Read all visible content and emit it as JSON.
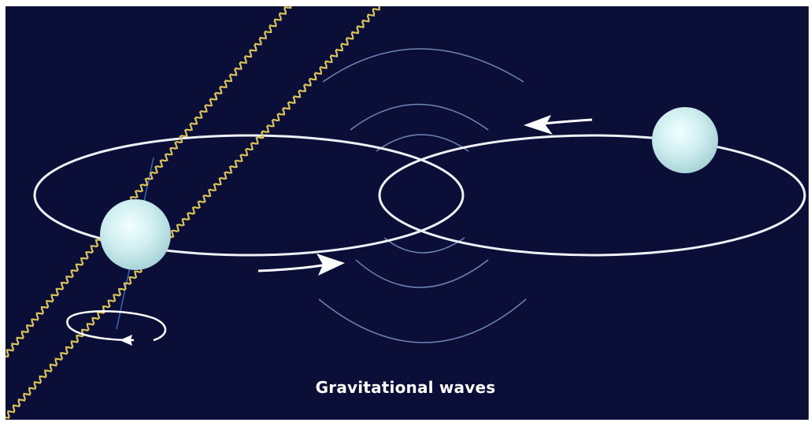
{
  "caption": "Gravitational waves",
  "colors": {
    "background": "#0b0f37",
    "orbit": "#eef1f5",
    "wave_ring": "#6f86b4",
    "wavy_line": "#d9c35a",
    "star_core": "#f2ffff",
    "star_edge": "#a9d4d8",
    "spin_axis": "#3a66b8"
  },
  "icons": {
    "left_star": "sphere",
    "right_star": "sphere",
    "orbit_arrow_bottom": "arrow-right",
    "orbit_arrow_top": "arrow-left",
    "spin_arrow": "arrow-left"
  }
}
